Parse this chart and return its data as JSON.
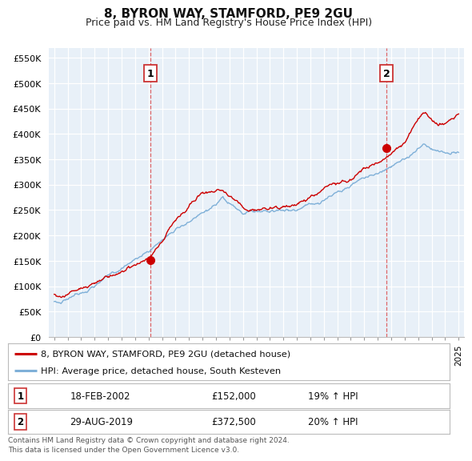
{
  "title": "8, BYRON WAY, STAMFORD, PE9 2GU",
  "subtitle": "Price paid vs. HM Land Registry's House Price Index (HPI)",
  "ylim": [
    0,
    570000
  ],
  "yticks": [
    0,
    50000,
    100000,
    150000,
    200000,
    250000,
    300000,
    350000,
    400000,
    450000,
    500000,
    550000
  ],
  "ytick_labels": [
    "£0",
    "£50K",
    "£100K",
    "£150K",
    "£200K",
    "£250K",
    "£300K",
    "£350K",
    "£400K",
    "£450K",
    "£500K",
    "£550K"
  ],
  "line1_color": "#cc0000",
  "line2_color": "#7fb0d8",
  "line2_fill_color": "#ddeeff",
  "marker_color": "#cc0000",
  "background_color": "#ffffff",
  "plot_bg_color": "#e8f0f8",
  "grid_color": "#ffffff",
  "annotation1": {
    "label": "1",
    "date_str": "18-FEB-2002",
    "price": "£152,000",
    "hpi": "19% ↑ HPI"
  },
  "annotation2": {
    "label": "2",
    "date_str": "29-AUG-2019",
    "price": "£372,500",
    "hpi": "20% ↑ HPI"
  },
  "legend_line1": "8, BYRON WAY, STAMFORD, PE9 2GU (detached house)",
  "legend_line2": "HPI: Average price, detached house, South Kesteven",
  "footer": "Contains HM Land Registry data © Crown copyright and database right 2024.\nThis data is licensed under the Open Government Licence v3.0.",
  "point1_x": 2002.12,
  "point1_y": 152000,
  "point2_x": 2019.66,
  "point2_y": 372500,
  "xlim_left": 1994.6,
  "xlim_right": 2025.4
}
